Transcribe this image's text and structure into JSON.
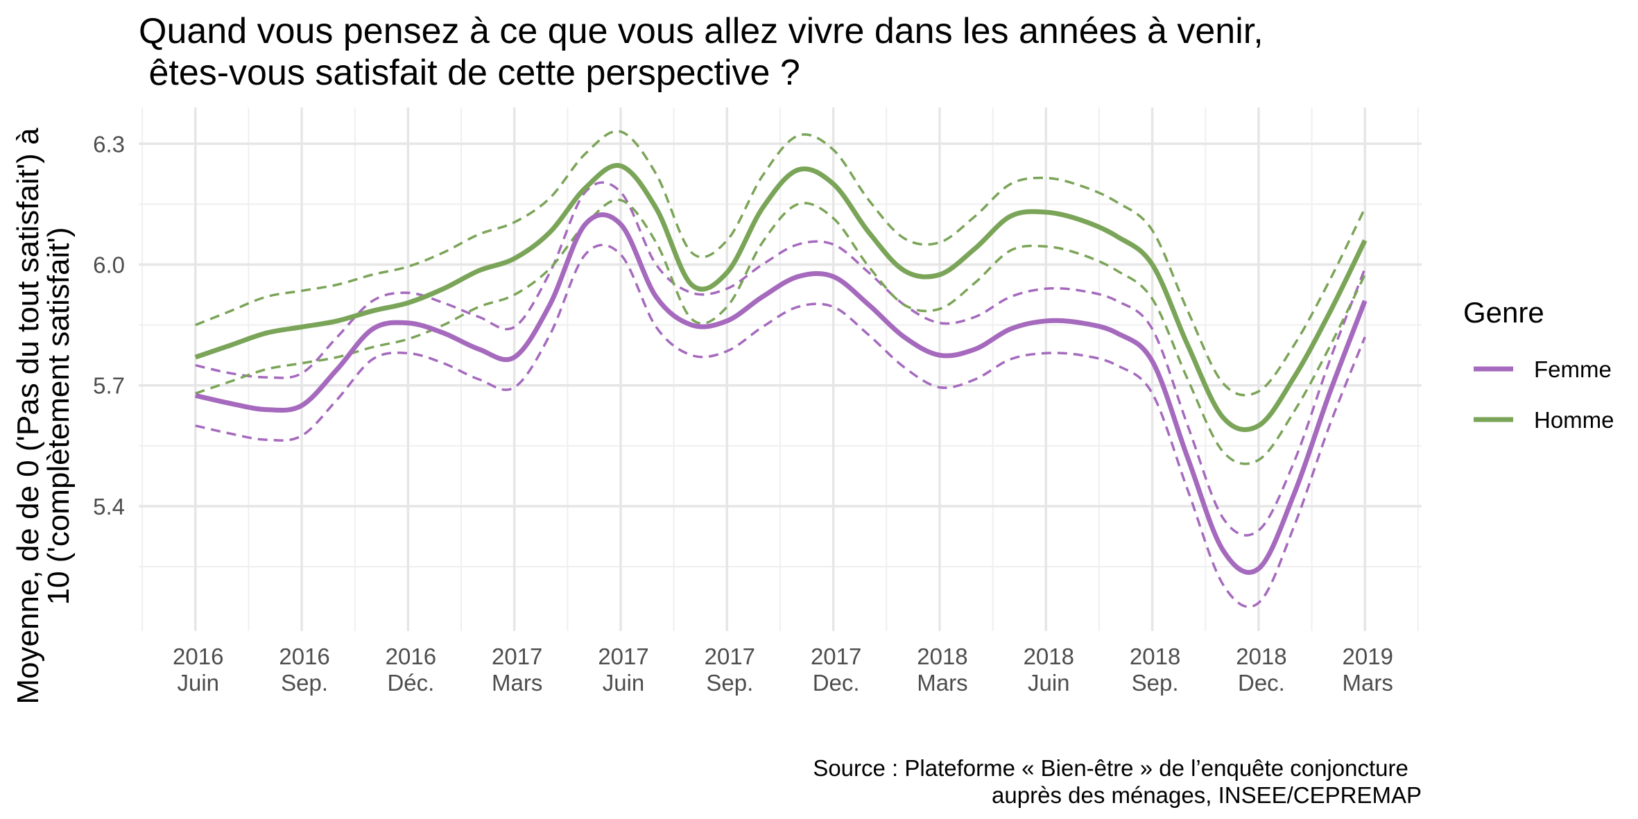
{
  "chart_data": {
    "type": "line",
    "title_lines": [
      "Quand vous pensez à ce que vous allez vivre dans les années à venir,",
      " êtes-vous satisfait de cette perspective ?"
    ],
    "ylabel_lines": [
      "Moyenne, de de 0 ('Pas du tout satisfait') à",
      "10 ('complètement satisfait')"
    ],
    "caption_lines": [
      "Source : Plateforme « Bien-être » de l’enquête conjoncture ",
      "auprès des ménages, INSEE/CEPREMAP"
    ],
    "x_ticks": [
      {
        "x": 0,
        "line1": "2016",
        "line2": "Juin"
      },
      {
        "x": 3,
        "line1": "2016",
        "line2": "Sep."
      },
      {
        "x": 6,
        "line1": "2016",
        "line2": "Déc."
      },
      {
        "x": 9,
        "line1": "2017",
        "line2": "Mars"
      },
      {
        "x": 12,
        "line1": "2017",
        "line2": "Juin"
      },
      {
        "x": 15,
        "line1": "2017",
        "line2": "Sep."
      },
      {
        "x": 18,
        "line1": "2017",
        "line2": "Dec."
      },
      {
        "x": 21,
        "line1": "2018",
        "line2": "Mars"
      },
      {
        "x": 24,
        "line1": "2018",
        "line2": "Juin"
      },
      {
        "x": 27,
        "line1": "2018",
        "line2": "Sep."
      },
      {
        "x": 30,
        "line1": "2018",
        "line2": "Dec."
      },
      {
        "x": 33,
        "line1": "2019",
        "line2": "Mars"
      }
    ],
    "y_ticks": [
      5.4,
      5.7,
      6.0,
      6.3
    ],
    "xlim": [
      -1.6,
      34.6
    ],
    "ylim": [
      5.09,
      6.39
    ],
    "grid": true,
    "legend": {
      "title": "Genre",
      "position": "right"
    },
    "series": [
      {
        "name": "Femme",
        "color": "#a569bd",
        "x": [
          0,
          1,
          2,
          3,
          4,
          5,
          6,
          7,
          8,
          9,
          10,
          11,
          12,
          13,
          14,
          15,
          16,
          17,
          18,
          19,
          20,
          21,
          22,
          23,
          24,
          25,
          26,
          27,
          28,
          29,
          30,
          31,
          32,
          33
        ],
        "values": [
          5.675,
          5.655,
          5.64,
          5.65,
          5.74,
          5.84,
          5.855,
          5.83,
          5.79,
          5.77,
          5.9,
          6.1,
          6.1,
          5.92,
          5.85,
          5.86,
          5.92,
          5.97,
          5.97,
          5.9,
          5.82,
          5.775,
          5.79,
          5.84,
          5.86,
          5.855,
          5.83,
          5.76,
          5.52,
          5.29,
          5.245,
          5.43,
          5.68,
          5.91
        ],
        "upper": [
          5.75,
          5.73,
          5.72,
          5.73,
          5.82,
          5.91,
          5.93,
          5.905,
          5.87,
          5.845,
          5.98,
          6.18,
          6.18,
          6.0,
          5.93,
          5.94,
          6.0,
          6.05,
          6.05,
          5.98,
          5.9,
          5.855,
          5.87,
          5.92,
          5.94,
          5.935,
          5.91,
          5.84,
          5.6,
          5.37,
          5.34,
          5.51,
          5.76,
          5.99
        ],
        "lower": [
          5.6,
          5.58,
          5.565,
          5.575,
          5.665,
          5.765,
          5.78,
          5.755,
          5.715,
          5.695,
          5.825,
          6.025,
          6.025,
          5.845,
          5.775,
          5.785,
          5.845,
          5.895,
          5.895,
          5.825,
          5.745,
          5.695,
          5.715,
          5.765,
          5.78,
          5.775,
          5.75,
          5.68,
          5.44,
          5.205,
          5.16,
          5.35,
          5.6,
          5.82
        ]
      },
      {
        "name": "Homme",
        "color": "#7aa457",
        "x": [
          0,
          1,
          2,
          3,
          4,
          5,
          6,
          7,
          8,
          9,
          10,
          11,
          12,
          13,
          14,
          15,
          16,
          17,
          18,
          19,
          20,
          21,
          22,
          23,
          24,
          25,
          26,
          27,
          28,
          29,
          30,
          31,
          32,
          33
        ],
        "values": [
          5.77,
          5.8,
          5.83,
          5.845,
          5.86,
          5.885,
          5.905,
          5.94,
          5.985,
          6.015,
          6.08,
          6.19,
          6.245,
          6.14,
          5.95,
          5.98,
          6.14,
          6.235,
          6.2,
          6.08,
          5.985,
          5.975,
          6.04,
          6.12,
          6.13,
          6.11,
          6.07,
          6.0,
          5.8,
          5.62,
          5.6,
          5.72,
          5.88,
          6.06
        ],
        "upper": [
          5.85,
          5.885,
          5.92,
          5.935,
          5.95,
          5.975,
          5.995,
          6.03,
          6.075,
          6.105,
          6.165,
          6.275,
          6.33,
          6.225,
          6.03,
          6.06,
          6.22,
          6.32,
          6.285,
          6.16,
          6.065,
          6.055,
          6.12,
          6.2,
          6.215,
          6.195,
          6.155,
          6.085,
          5.885,
          5.705,
          5.685,
          5.8,
          5.96,
          6.14
        ],
        "lower": [
          5.68,
          5.71,
          5.74,
          5.755,
          5.77,
          5.795,
          5.815,
          5.85,
          5.895,
          5.925,
          5.99,
          6.1,
          6.16,
          6.055,
          5.865,
          5.895,
          6.055,
          6.15,
          6.115,
          5.995,
          5.9,
          5.89,
          5.955,
          6.035,
          6.045,
          6.025,
          5.985,
          5.915,
          5.715,
          5.535,
          5.515,
          5.635,
          5.795,
          5.975
        ]
      }
    ]
  }
}
